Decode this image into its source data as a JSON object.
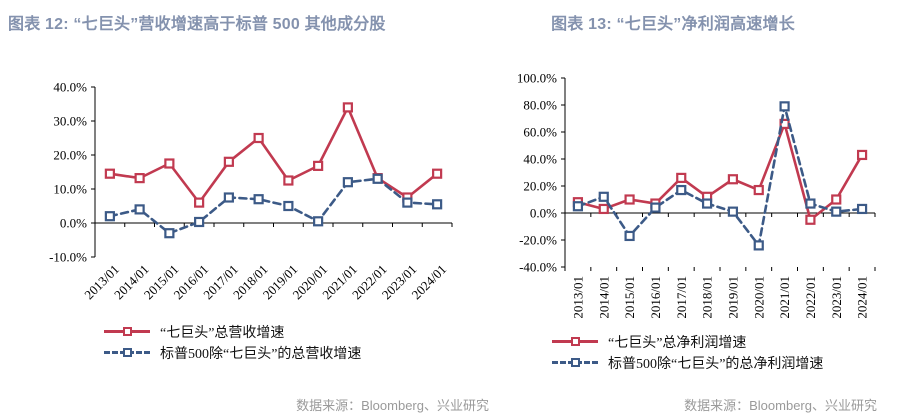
{
  "colors": {
    "title": "#8492AE",
    "series_red": "#C13A50",
    "series_blue": "#3C5A87",
    "source_text": "#9A9A9A",
    "axis": "#000000"
  },
  "chart_data": [
    {
      "type": "line",
      "title": "图表 12: “七巨头”营收增速高于标普 500 其他成分股",
      "categories": [
        "2013/01",
        "2014/01",
        "2015/01",
        "2016/01",
        "2017/01",
        "2018/01",
        "2019/01",
        "2020/01",
        "2021/01",
        "2022/01",
        "2023/01",
        "2024/01"
      ],
      "ylim": [
        -10,
        40
      ],
      "ytick_step": 10,
      "ytick_labels": [
        "-10.0%",
        "0.0%",
        "10.0%",
        "20.0%",
        "30.0%",
        "40.0%"
      ],
      "grid": false,
      "legend_position": "bottom-left",
      "x_label_rotation": -45,
      "series": [
        {
          "name": "“七巨头”总营收增速",
          "color": "#C13A50",
          "line_style": "solid",
          "marker": "open-square",
          "values": [
            14.5,
            13.2,
            17.5,
            6.0,
            18.0,
            25.0,
            12.5,
            16.8,
            34.0,
            13.2,
            7.5,
            14.5
          ]
        },
        {
          "name": "标普500除“七巨头”的总营收增速",
          "color": "#3C5A87",
          "line_style": "dashed",
          "marker": "open-square",
          "values": [
            2.0,
            4.0,
            -3.0,
            0.3,
            7.5,
            7.0,
            5.0,
            0.5,
            12.0,
            13.0,
            6.0,
            5.5
          ]
        }
      ],
      "source_note": "数据来源：Bloomberg、兴业研究"
    },
    {
      "type": "line",
      "title": "图表 13: “七巨头”净利润高速增长",
      "categories": [
        "2013/01",
        "2014/01",
        "2015/01",
        "2016/01",
        "2017/01",
        "2018/01",
        "2019/01",
        "2020/01",
        "2021/01",
        "2022/01",
        "2023/01",
        "2024/01"
      ],
      "ylim": [
        -40,
        100
      ],
      "ytick_step": 20,
      "ytick_labels": [
        "-40.0%",
        "-20.0%",
        "0.0%",
        "20.0%",
        "40.0%",
        "60.0%",
        "80.0%",
        "100.0%"
      ],
      "grid": false,
      "legend_position": "bottom-left",
      "x_label_rotation": -90,
      "series": [
        {
          "name": "“七巨头”总净利润增速",
          "color": "#C13A50",
          "line_style": "solid",
          "marker": "open-square",
          "values": [
            8.0,
            3.0,
            10.0,
            7.0,
            26.0,
            12.0,
            25.0,
            17.0,
            66.0,
            -5.0,
            10.0,
            43.0
          ]
        },
        {
          "name": "标普500除“七巨头”的总净利润增速",
          "color": "#3C5A87",
          "line_style": "dashed",
          "marker": "open-square",
          "values": [
            5.0,
            12.0,
            -17.0,
            4.0,
            17.0,
            7.0,
            1.0,
            -24.0,
            79.0,
            7.0,
            1.0,
            3.0
          ]
        }
      ],
      "source_note": "数据来源：Bloomberg、兴业研究"
    }
  ]
}
